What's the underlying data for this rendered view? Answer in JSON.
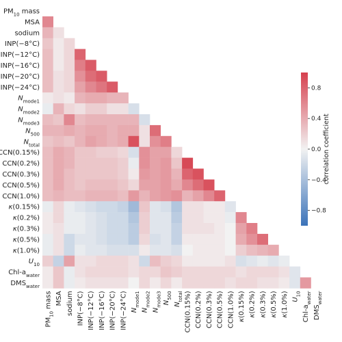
{
  "chart_data": {
    "type": "heatmap",
    "subtype": "lower-triangle correlation matrix",
    "variables": [
      {
        "base": "PM",
        "sub": "10",
        "suffix": " mass"
      },
      {
        "base": "MSA"
      },
      {
        "base": "sodium"
      },
      {
        "base": "INP(−8°C)"
      },
      {
        "base": "INP(−12°C)"
      },
      {
        "base": "INP(−16°C)"
      },
      {
        "base": "INP(−20°C)"
      },
      {
        "base": "INP(−24°C)"
      },
      {
        "base": "N",
        "sub": "mode1",
        "italic": true
      },
      {
        "base": "N",
        "sub": "mode2",
        "italic": true
      },
      {
        "base": "N",
        "sub": "mode3",
        "italic": true
      },
      {
        "base": "N",
        "sub": "500",
        "italic": true
      },
      {
        "base": "N",
        "sub": "total",
        "italic": true
      },
      {
        "base": "CCN(0.15%)"
      },
      {
        "base": "CCN(0.2%)"
      },
      {
        "base": "CCN(0.3%)"
      },
      {
        "base": "CCN(0.5%)"
      },
      {
        "base": "CCN(1.0%)"
      },
      {
        "base": "κ",
        "suffix": "(0.15%)",
        "italic": true
      },
      {
        "base": "κ",
        "suffix": "(0.2%)",
        "italic": true
      },
      {
        "base": "κ",
        "suffix": "(0.3%)",
        "italic": true
      },
      {
        "base": "κ",
        "suffix": "(0.5%)",
        "italic": true
      },
      {
        "base": "κ",
        "suffix": "(1.0%)",
        "italic": true
      },
      {
        "base": "U",
        "sub": "10",
        "italic": true
      },
      {
        "base": "Chl-a",
        "sub": "water"
      },
      {
        "base": "DMS",
        "sub": "water"
      }
    ],
    "lower_triangle_rows": [
      [],
      [
        0.6
      ],
      [
        0.35,
        0.1
      ],
      [
        0.25,
        0.05,
        0.15
      ],
      [
        0.3,
        0.05,
        0.15,
        0.8
      ],
      [
        0.3,
        0.05,
        0.15,
        0.65,
        0.85
      ],
      [
        0.3,
        0.1,
        0.15,
        0.55,
        0.75,
        0.85
      ],
      [
        0.3,
        0.1,
        0.15,
        0.45,
        0.6,
        0.7,
        0.85
      ],
      [
        0.05,
        0.1,
        0.05,
        0.35,
        0.4,
        0.4,
        0.35,
        0.35
      ],
      [
        -0.05,
        0.35,
        0.15,
        0.1,
        0.2,
        0.2,
        0.1,
        0.1,
        -0.15
      ],
      [
        0.3,
        0.25,
        0.6,
        0.3,
        0.35,
        0.35,
        0.35,
        0.35,
        0.35,
        -0.15
      ],
      [
        0.35,
        0.35,
        0.4,
        0.35,
        0.4,
        0.4,
        0.35,
        0.4,
        0.4,
        0.1,
        0.75
      ],
      [
        0.25,
        0.3,
        0.25,
        0.35,
        0.45,
        0.4,
        0.35,
        0.4,
        0.9,
        0.1,
        0.55,
        0.65
      ],
      [
        0.3,
        0.4,
        0.35,
        0.25,
        0.25,
        0.2,
        0.2,
        0.15,
        -0.15,
        0.55,
        0.45,
        0.45,
        0.15
      ],
      [
        0.3,
        0.4,
        0.35,
        0.25,
        0.25,
        0.25,
        0.25,
        0.2,
        -0.05,
        0.55,
        0.45,
        0.5,
        0.25,
        0.95
      ],
      [
        0.3,
        0.4,
        0.3,
        0.25,
        0.25,
        0.25,
        0.25,
        0.2,
        0.05,
        0.5,
        0.45,
        0.5,
        0.35,
        0.8,
        0.9
      ],
      [
        0.3,
        0.4,
        0.3,
        0.25,
        0.3,
        0.3,
        0.3,
        0.25,
        0.15,
        0.45,
        0.45,
        0.5,
        0.4,
        0.6,
        0.75,
        0.9
      ],
      [
        0.3,
        0.35,
        0.3,
        0.3,
        0.35,
        0.35,
        0.35,
        0.3,
        0.5,
        0.35,
        0.45,
        0.5,
        0.55,
        0.35,
        0.45,
        0.6,
        0.8
      ],
      [
        -0.05,
        0.15,
        -0.05,
        -0.1,
        -0.15,
        -0.2,
        -0.2,
        -0.25,
        -0.45,
        0.25,
        -0.1,
        -0.15,
        -0.35,
        0.1,
        0.1,
        0.05,
        0.05,
        -0.1
      ],
      [
        0.05,
        0.15,
        -0.05,
        -0.05,
        -0.1,
        -0.15,
        -0.2,
        -0.2,
        -0.35,
        0.2,
        -0.1,
        -0.1,
        -0.3,
        0.1,
        0.1,
        0.05,
        0.05,
        -0.05,
        0.6
      ],
      [
        0.05,
        0.1,
        -0.05,
        -0.05,
        -0.1,
        -0.15,
        -0.2,
        -0.2,
        -0.3,
        0.2,
        -0.1,
        -0.1,
        -0.25,
        0.1,
        0.1,
        0.1,
        0.05,
        0.0,
        0.45,
        0.65
      ],
      [
        -0.05,
        0.1,
        -0.2,
        -0.1,
        -0.1,
        -0.15,
        -0.2,
        -0.2,
        -0.3,
        0.15,
        -0.15,
        -0.1,
        -0.25,
        0.05,
        0.05,
        0.05,
        0.05,
        0.0,
        0.4,
        0.55,
        0.75
      ],
      [
        -0.05,
        0.1,
        -0.2,
        -0.05,
        -0.1,
        -0.1,
        -0.15,
        -0.15,
        -0.15,
        0.05,
        -0.1,
        -0.1,
        -0.15,
        0.0,
        0.05,
        0.05,
        0.05,
        0.0,
        0.2,
        0.3,
        0.35,
        0.4
      ],
      [
        0.2,
        -0.25,
        0.45,
        0.1,
        0.1,
        0.15,
        0.15,
        0.15,
        0.1,
        -0.2,
        0.3,
        0.2,
        0.15,
        0.05,
        0.05,
        0.05,
        0.05,
        0.1,
        -0.15,
        -0.1,
        -0.05,
        -0.1,
        -0.05
      ],
      [
        0.05,
        0.25,
        -0.05,
        0.1,
        0.15,
        0.15,
        0.15,
        0.15,
        0.1,
        0.15,
        0.15,
        0.25,
        0.2,
        0.15,
        0.15,
        0.15,
        0.15,
        0.15,
        0.1,
        0.15,
        0.15,
        0.15,
        0.1,
        -0.1
      ],
      [
        0.05,
        0.25,
        -0.05,
        0.05,
        0.1,
        0.1,
        0.1,
        0.1,
        0.0,
        0.15,
        0.05,
        0.15,
        0.05,
        0.15,
        0.15,
        0.15,
        0.15,
        0.1,
        0.15,
        0.15,
        0.1,
        0.1,
        0.05,
        -0.1,
        0.5
      ]
    ],
    "vmin": -1,
    "vmax": 1,
    "colormap": {
      "low": "#3b73b9",
      "mid": "#f2f2f2",
      "high": "#d6404e"
    },
    "colorbar": {
      "label": "correlation coefficient",
      "ticks": [
        0.8,
        0.4,
        0.0,
        -0.4,
        -0.8
      ],
      "tick_labels": [
        "0.8",
        "0.4",
        "0.0",
        "−0.4",
        "−0.8"
      ],
      "placement": "right"
    }
  }
}
